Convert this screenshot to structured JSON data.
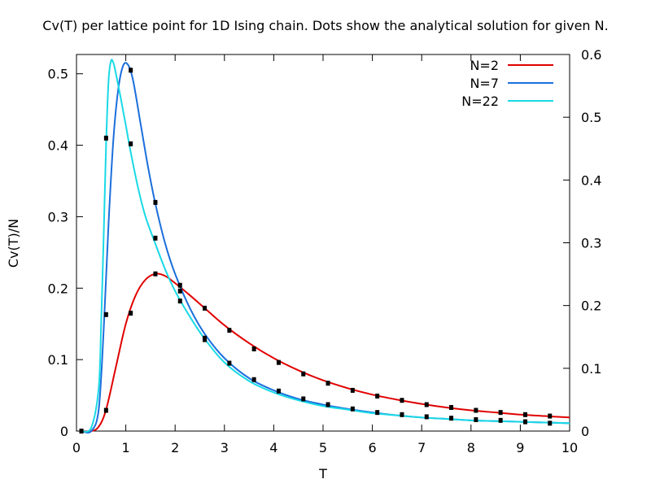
{
  "chart_data": {
    "type": "line",
    "title": "Cv(T) per lattice point for 1D Ising chain. Dots show the analytical solution for given N.",
    "xlabel": "T",
    "ylabel": "Cv(T)/N",
    "xlim": [
      0,
      10
    ],
    "ylim": [
      0,
      0.527
    ],
    "y2lim": [
      0,
      0.6
    ],
    "x_ticks": [
      "0",
      "1",
      "2",
      "3",
      "4",
      "5",
      "6",
      "7",
      "8",
      "9",
      "10"
    ],
    "y_ticks": [
      "0",
      "0.1",
      "0.2",
      "0.3",
      "0.4",
      "0.5"
    ],
    "y2_ticks": [
      "0",
      "0.1",
      "0.2",
      "0.3",
      "0.4",
      "0.5",
      "0.6"
    ],
    "grid": false,
    "legend_position": "top-right",
    "series": [
      {
        "name": "N=2",
        "color": "#e00000",
        "x": [
          0.1,
          0.3,
          0.45,
          0.6,
          0.8,
          1.0,
          1.2,
          1.4,
          1.6,
          1.8,
          2.0,
          2.3,
          2.6,
          3.0,
          3.5,
          4.0,
          4.5,
          5.0,
          5.5,
          6.0,
          6.5,
          7.0,
          7.5,
          8.0,
          8.5,
          9.0,
          9.5,
          10.0
        ],
        "y": [
          0.0,
          0.0,
          0.006,
          0.03,
          0.09,
          0.15,
          0.19,
          0.212,
          0.22,
          0.217,
          0.207,
          0.19,
          0.172,
          0.148,
          0.123,
          0.102,
          0.085,
          0.071,
          0.06,
          0.051,
          0.044,
          0.038,
          0.033,
          0.029,
          0.026,
          0.023,
          0.021,
          0.019
        ]
      },
      {
        "name": "N=7",
        "color": "#1b6fdc",
        "x": [
          0.1,
          0.3,
          0.45,
          0.55,
          0.65,
          0.75,
          0.85,
          0.95,
          1.05,
          1.15,
          1.3,
          1.45,
          1.6,
          1.8,
          2.0,
          2.3,
          2.6,
          3.0,
          3.5,
          4.0,
          4.5,
          5.0,
          5.5,
          6.0,
          6.5,
          7.0,
          7.5,
          8.0,
          8.5,
          9.0,
          9.5,
          10.0
        ],
        "y": [
          0.0,
          0.0,
          0.03,
          0.14,
          0.29,
          0.41,
          0.48,
          0.512,
          0.512,
          0.49,
          0.43,
          0.37,
          0.318,
          0.262,
          0.22,
          0.172,
          0.136,
          0.102,
          0.074,
          0.057,
          0.045,
          0.037,
          0.031,
          0.026,
          0.022,
          0.019,
          0.017,
          0.015,
          0.014,
          0.013,
          0.012,
          0.011
        ]
      },
      {
        "name": "N=22",
        "color": "#19d9e6",
        "x": [
          0.1,
          0.3,
          0.45,
          0.5,
          0.55,
          0.6,
          0.65,
          0.7,
          0.75,
          0.8,
          0.9,
          1.0,
          1.1,
          1.25,
          1.4,
          1.6,
          1.8,
          2.0,
          2.3,
          2.6,
          3.0,
          3.5,
          4.0,
          4.5,
          5.0,
          5.5,
          6.0,
          6.5,
          7.0,
          7.5,
          8.0,
          8.5,
          9.0,
          9.5,
          10.0
        ],
        "y": [
          0.0,
          0.005,
          0.06,
          0.15,
          0.27,
          0.4,
          0.49,
          0.518,
          0.515,
          0.5,
          0.465,
          0.428,
          0.39,
          0.34,
          0.3,
          0.262,
          0.226,
          0.196,
          0.16,
          0.129,
          0.096,
          0.07,
          0.054,
          0.043,
          0.035,
          0.03,
          0.025,
          0.022,
          0.019,
          0.017,
          0.015,
          0.014,
          0.013,
          0.012,
          0.011
        ]
      }
    ],
    "analytical_points": [
      {
        "series": "N=2",
        "x": [
          0.1,
          0.6,
          1.1,
          1.6,
          2.1,
          2.6,
          3.1,
          3.6,
          4.1,
          4.6,
          5.1,
          5.6,
          6.1,
          6.6,
          7.1,
          7.6,
          8.1,
          8.6,
          9.1,
          9.6
        ],
        "y": [
          0.0,
          0.029,
          0.165,
          0.22,
          0.204,
          0.172,
          0.141,
          0.115,
          0.096,
          0.08,
          0.067,
          0.057,
          0.049,
          0.043,
          0.037,
          0.033,
          0.029,
          0.026,
          0.023,
          0.021
        ]
      },
      {
        "series": "N=7",
        "x": [
          0.1,
          0.6,
          1.1,
          1.6,
          2.1,
          2.6,
          3.1,
          3.6,
          4.1,
          4.6,
          5.1,
          5.6,
          6.1,
          6.6,
          7.1,
          7.6,
          8.1,
          8.6,
          9.1,
          9.6
        ],
        "y": [
          0.0,
          0.163,
          0.505,
          0.32,
          0.196,
          0.13,
          0.095,
          0.072,
          0.056,
          0.045,
          0.037,
          0.031,
          0.026,
          0.023,
          0.02,
          0.018,
          0.016,
          0.015,
          0.013,
          0.011
        ]
      },
      {
        "series": "N=22",
        "x": [
          0.6,
          1.1,
          1.6,
          2.1,
          2.6
        ],
        "y": [
          0.41,
          0.402,
          0.27,
          0.182,
          0.128
        ]
      }
    ]
  }
}
